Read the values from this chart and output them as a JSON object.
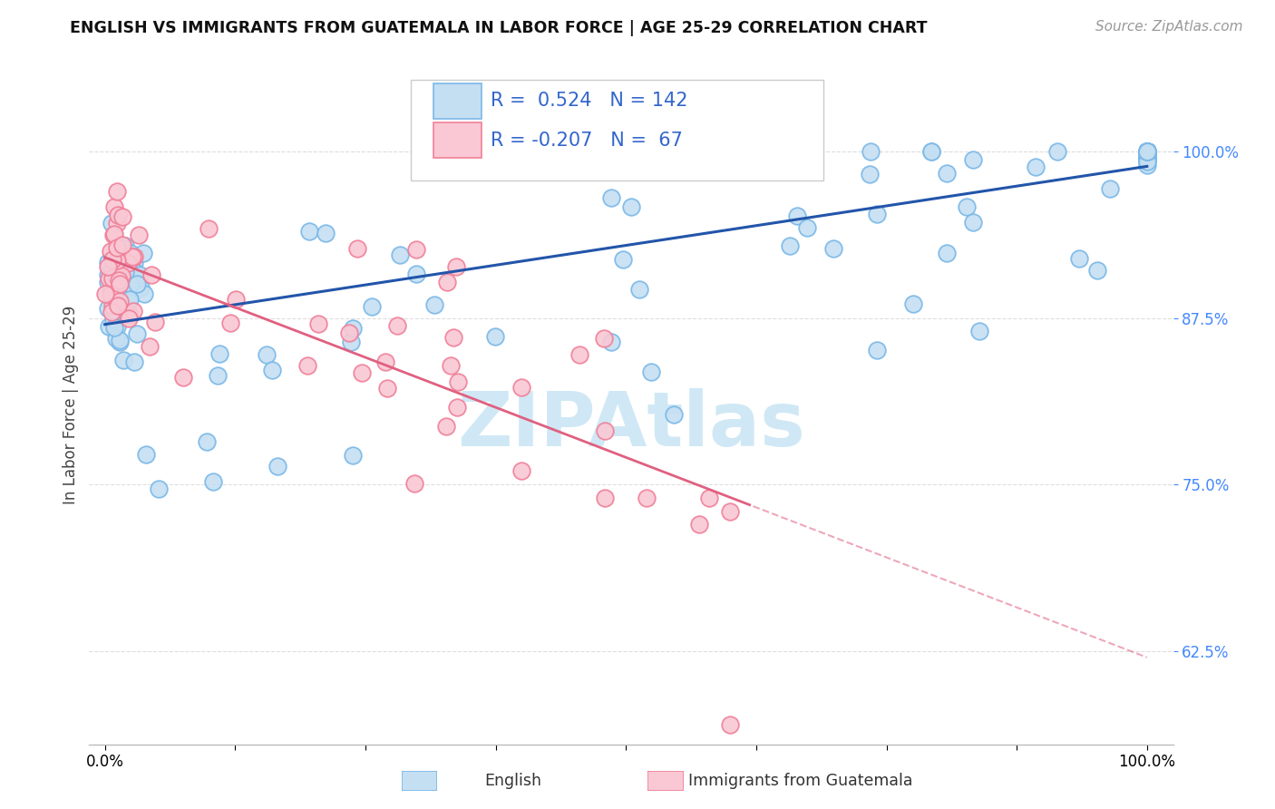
{
  "title": "ENGLISH VS IMMIGRANTS FROM GUATEMALA IN LABOR FORCE | AGE 25-29 CORRELATION CHART",
  "source": "Source: ZipAtlas.com",
  "ylabel": "In Labor Force | Age 25-29",
  "watermark": "ZIPAtlas",
  "legend_r_english": "0.524",
  "legend_n_english": "142",
  "legend_r_guatemala": "-0.207",
  "legend_n_guatemala": "67",
  "blue_marker_face": "#c5dff2",
  "blue_marker_edge": "#7ab8e8",
  "pink_marker_face": "#f9c8d4",
  "pink_marker_edge": "#f08099",
  "blue_line_color": "#2255aa",
  "pink_line_color": "#e06080",
  "ytick_color": "#4488ff",
  "title_color": "#111111",
  "source_color": "#999999",
  "watermark_color": "#d0e8f5",
  "grid_color": "#dddddd",
  "bottom_legend_color": "#333333"
}
